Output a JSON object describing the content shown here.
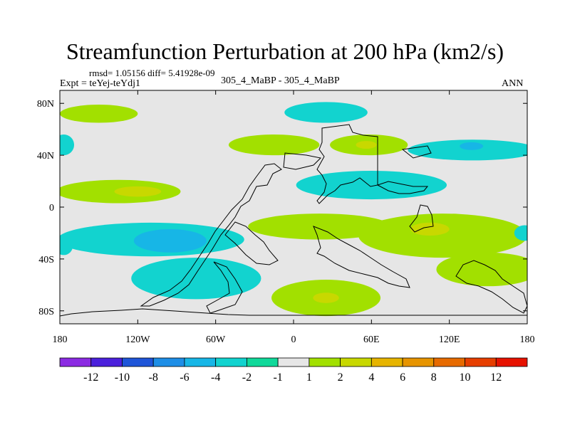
{
  "chart_data": {
    "type": "contour-map",
    "title": "Streamfunction Perturbation at 200 hPa (km2/s)",
    "stats": "rmsd= 1.05156 diff= 5.41928e-09",
    "experiment": "Expt = teYej-teYdj1",
    "subtitle": "305_4_MaBP - 305_4_MaBP",
    "period": "ANN",
    "x_ticks": [
      {
        "value": -180,
        "label": "180"
      },
      {
        "value": -120,
        "label": "120W"
      },
      {
        "value": -60,
        "label": "60W"
      },
      {
        "value": 0,
        "label": "0"
      },
      {
        "value": 60,
        "label": "60E"
      },
      {
        "value": 120,
        "label": "120E"
      },
      {
        "value": 180,
        "label": "180"
      }
    ],
    "y_ticks": [
      {
        "value": 80,
        "label": "80N"
      },
      {
        "value": 40,
        "label": "40N"
      },
      {
        "value": 0,
        "label": "0"
      },
      {
        "value": -40,
        "label": "40S"
      },
      {
        "value": -80,
        "label": "80S"
      }
    ],
    "xlim": [
      -180,
      180
    ],
    "ylim": [
      -90,
      90
    ],
    "colorbar": {
      "colors": [
        "#8b2be2",
        "#4b20dc",
        "#1f55d8",
        "#1e8ee6",
        "#17b6e6",
        "#12d3cf",
        "#10d99a",
        "#e6e6e6",
        "#a2e000",
        "#c8d800",
        "#e6b400",
        "#e69400",
        "#e66a00",
        "#e63e00",
        "#e61200"
      ],
      "labels": [
        "-12",
        "-10",
        "-8",
        "-6",
        "-4",
        "-2",
        "-1",
        "1",
        "2",
        "4",
        "6",
        "8",
        "10",
        "12"
      ]
    },
    "regions": [
      {
        "name": "nh-pacific-positive",
        "lon": -150,
        "lat": 72,
        "rlon": 30,
        "rlat": 7,
        "level": "2"
      },
      {
        "name": "arctic-negative-band",
        "lon": 25,
        "lat": 73,
        "rlon": 32,
        "rlat": 8,
        "level": "-2"
      },
      {
        "name": "north-pacific-ridge",
        "lon": -15,
        "lat": 48,
        "rlon": 35,
        "rlat": 8,
        "level": "2"
      },
      {
        "name": "eurasia-ridge",
        "lon": 58,
        "lat": 48,
        "rlon": 30,
        "rlat": 8,
        "level": "2"
      },
      {
        "name": "eurasia-ridge-core",
        "lon": 56,
        "lat": 48,
        "rlon": 8,
        "rlat": 3,
        "level": "4"
      },
      {
        "name": "nw-pacific-negative",
        "lon": 138,
        "lat": 44,
        "rlon": 50,
        "rlat": 8,
        "level": "-2"
      },
      {
        "name": "nw-pacific-core",
        "lon": 137,
        "lat": 47,
        "rlon": 9,
        "rlat": 3,
        "level": "-4"
      },
      {
        "name": "nw-atlantic-negative",
        "lon": -177,
        "lat": 48,
        "rlon": 8,
        "rlat": 8,
        "level": "-2"
      },
      {
        "name": "tropical-pacific-ridge",
        "lon": -135,
        "lat": 12,
        "rlon": 48,
        "rlat": 9,
        "level": "2"
      },
      {
        "name": "tropical-pacific-core",
        "lon": -120,
        "lat": 12,
        "rlon": 18,
        "rlat": 4,
        "level": "4"
      },
      {
        "name": "asia-negative-band",
        "lon": 60,
        "lat": 17,
        "rlon": 58,
        "rlat": 11,
        "level": "-2"
      },
      {
        "name": "se-pacific-negative",
        "lon": -110,
        "lat": -25,
        "rlon": 72,
        "rlat": 13,
        "level": "-2"
      },
      {
        "name": "se-pacific-core",
        "lon": -95,
        "lat": -26,
        "rlon": 28,
        "rlat": 9,
        "level": "-4"
      },
      {
        "name": "south-atlantic-negative",
        "lon": -75,
        "lat": -55,
        "rlon": 50,
        "rlat": 16,
        "level": "-2"
      },
      {
        "name": "west-atlantic-spur",
        "lon": -177,
        "lat": -30,
        "rlon": 7,
        "rlat": 7,
        "level": "-2"
      },
      {
        "name": "indian-ocean-ridge",
        "lon": 20,
        "lat": -15,
        "rlon": 55,
        "rlat": 10,
        "level": "2"
      },
      {
        "name": "australia-ridge",
        "lon": 115,
        "lat": -22,
        "rlon": 65,
        "rlat": 17,
        "level": "2"
      },
      {
        "name": "australia-core",
        "lon": 105,
        "lat": -17,
        "rlon": 15,
        "rlat": 5,
        "level": "4"
      },
      {
        "name": "south-pacific-east-ridge",
        "lon": 150,
        "lat": -48,
        "rlon": 40,
        "rlat": 13,
        "level": "2"
      },
      {
        "name": "southern-ocean-ridge",
        "lon": 25,
        "lat": -70,
        "rlon": 42,
        "rlat": 14,
        "level": "2"
      },
      {
        "name": "southern-ocean-core",
        "lon": 25,
        "lat": -70,
        "rlon": 10,
        "rlat": 4,
        "level": "4"
      },
      {
        "name": "east-indian-negative",
        "lon": 178,
        "lat": -20,
        "rlon": 8,
        "rlat": 6,
        "level": "-2"
      }
    ]
  }
}
